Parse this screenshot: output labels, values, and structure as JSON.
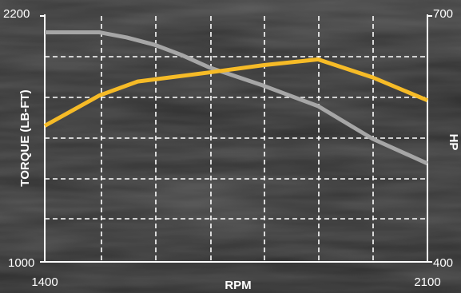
{
  "chart_data": {
    "type": "line",
    "title": "",
    "xlabel": "RPM",
    "ylabel_left": "TORQUE (LB-FT)",
    "ylabel_right": "HP",
    "xlim": [
      1400,
      2100
    ],
    "ylim_left": [
      1000,
      2200
    ],
    "ylim_right": [
      400,
      700
    ],
    "x_tick_labels": [
      "1400",
      "2100"
    ],
    "y_left_tick_labels": [
      "2200",
      "1000"
    ],
    "y_right_tick_labels": [
      "700",
      "400"
    ],
    "grid": true,
    "legend": "none",
    "series": [
      {
        "axis": "left",
        "color": "#a6a6a6",
        "x": [
          1400,
          1500,
          1550,
          1600,
          1650,
          1700,
          1800,
          1900,
          2000,
          2100
        ],
        "y": [
          2120,
          2120,
          2095,
          2060,
          2010,
          1950,
          1860,
          1760,
          1600,
          1480
        ]
      },
      {
        "axis": "right",
        "color": "#f6bb27",
        "x": [
          1400,
          1500,
          1570,
          1700,
          1800,
          1900,
          2000,
          2100
        ],
        "y": [
          566,
          603,
          620,
          631,
          640,
          647,
          625,
          597
        ]
      }
    ]
  },
  "colors": {
    "grid": "#ffffff",
    "axis": "#ffffff"
  }
}
